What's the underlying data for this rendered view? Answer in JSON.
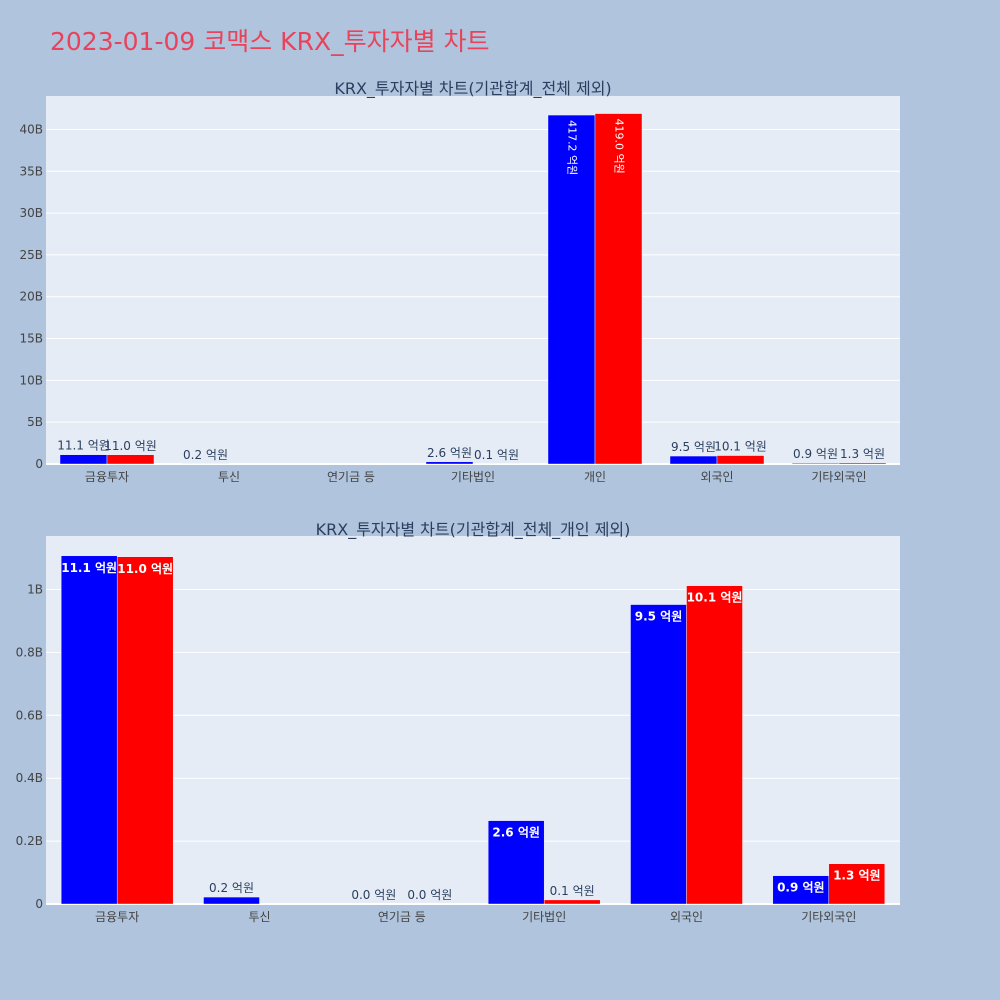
{
  "title": "2023-01-09 코맥스 KRX_투자자별 차트",
  "colors": {
    "buy": "#0000ff",
    "sell": "#ff0000",
    "plot_bg": "#e5ecf6",
    "paper_bg": "#b0c4de",
    "title": "#e8435a"
  },
  "chart_data": [
    {
      "type": "bar",
      "title": "KRX_투자자별 차트(기관합계_전체 제외)",
      "categories": [
        "금융투자",
        "투신",
        "연기금 등",
        "기타법인",
        "개인",
        "외국인",
        "기타외국인"
      ],
      "series": [
        {
          "color": "#0000ff",
          "values": [
            1.11,
            0.02,
            0,
            0.26,
            41.72,
            0.95,
            0.09
          ],
          "labels": [
            "11.1 억원",
            "0.2 억원",
            "",
            "2.6 억원",
            "417.2 억원",
            "9.5 억원",
            "0.9 억원"
          ]
        },
        {
          "color": "#ff0000",
          "values": [
            1.1,
            0,
            0,
            0.01,
            41.9,
            1.01,
            0.13
          ],
          "labels": [
            "11.0 억원",
            "",
            "",
            "0.1 억원",
            "419.0 억원",
            "10.1 억원",
            "1.3 억원"
          ]
        }
      ],
      "ylim": [
        0,
        44
      ],
      "yticks": [
        0,
        5,
        10,
        15,
        20,
        25,
        30,
        35,
        40
      ],
      "ytick_labels": [
        "0",
        "5B",
        "10B",
        "15B",
        "20B",
        "25B",
        "30B",
        "35B",
        "40B"
      ],
      "grid": true
    },
    {
      "type": "bar",
      "title": "KRX_투자자별 차트(기관합계_전체_개인 제외)",
      "categories": [
        "금융투자",
        "투신",
        "연기금 등",
        "기타법인",
        "외국인",
        "기타외국인"
      ],
      "series": [
        {
          "color": "#0000ff",
          "values": [
            1.107,
            0.022,
            0,
            0.265,
            0.952,
            0.09
          ],
          "labels": [
            "11.1 억원",
            "0.2 억원",
            "0.0 억원",
            "2.6 억원",
            "9.5 억원",
            "0.9 억원"
          ]
        },
        {
          "color": "#ff0000",
          "values": [
            1.104,
            0,
            0,
            0.013,
            1.012,
            0.128
          ],
          "labels": [
            "11.0 억원",
            "",
            "0.0 억원",
            "0.1 억원",
            "10.1 억원",
            "1.3 억원"
          ]
        }
      ],
      "ylim": [
        0,
        1.17
      ],
      "yticks": [
        0,
        0.2,
        0.4,
        0.6,
        0.8,
        1.0
      ],
      "ytick_labels": [
        "0",
        "0.2B",
        "0.4B",
        "0.6B",
        "0.8B",
        "1B"
      ],
      "grid": true
    }
  ]
}
